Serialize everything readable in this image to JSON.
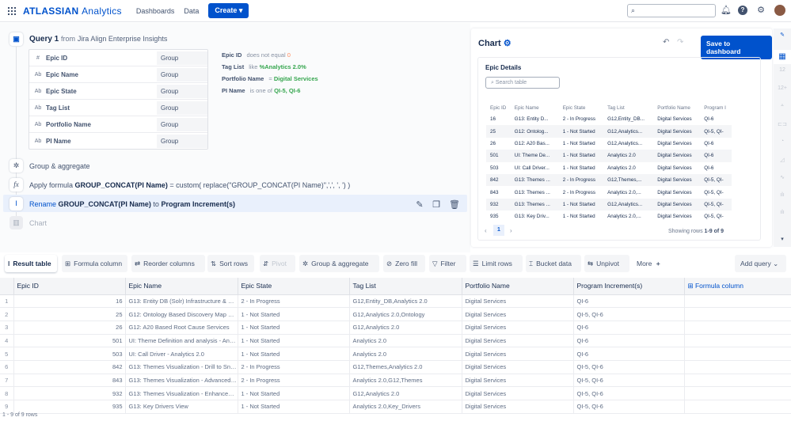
{
  "header": {
    "logo": "ATLASSIAN",
    "logo_product": "Analytics",
    "nav": [
      "Dashboards",
      "Data"
    ],
    "create": "Create",
    "search_placeholder": ""
  },
  "query": {
    "title": "Query 1",
    "from": "from",
    "source": "Jira Align Enterprise Insights",
    "fields": [
      {
        "type": "#",
        "name": "Epic ID",
        "agg": "Group"
      },
      {
        "type": "Ab",
        "name": "Epic Name",
        "agg": "Group"
      },
      {
        "type": "Ab",
        "name": "Epic State",
        "agg": "Group"
      },
      {
        "type": "Ab",
        "name": "Tag List",
        "agg": "Group"
      },
      {
        "type": "Ab",
        "name": "Portfolio Name",
        "agg": "Group"
      },
      {
        "type": "Ab",
        "name": "PI Name",
        "agg": "Group"
      }
    ],
    "filters": [
      {
        "field": "Epic ID",
        "op": "does not equal",
        "value": "0"
      },
      {
        "field": "Tag List",
        "op": "like",
        "value": "%Analytics 2.0%"
      },
      {
        "field": "Portfolio Name",
        "op": "=",
        "value": "Digital Services"
      },
      {
        "field": "PI Name",
        "op": "is one of",
        "value": "QI-5,  QI-6"
      }
    ],
    "steps": {
      "group": "Group & aggregate",
      "formula_pre": "Apply formula",
      "formula_name": "GROUP_CONCAT(PI Name)",
      "formula_expr": "= custom( replace(\"GROUP_CONCAT(PI Name)\",',', ', ') )",
      "rename": "Rename",
      "rename_from": "GROUP_CONCAT(PI Name)",
      "rename_to_word": "to",
      "rename_to": "Program Increment(s)",
      "chart": "Chart"
    }
  },
  "chart": {
    "title": "Chart",
    "save": "Save to dashboard",
    "card_title": "Epic Details",
    "search_placeholder": "Search table",
    "columns": [
      "Epic ID",
      "Epic Name",
      "Epic State",
      "Tag List",
      "Portfolio Name",
      "Program I"
    ],
    "rows": [
      [
        "16",
        "G13: Entity D...",
        "2 - In Progress",
        "G12,Entity_DB...",
        "Digital Services",
        "QI-6"
      ],
      [
        "25",
        "G12: Ontolog...",
        "1 - Not Started",
        "G12,Analytics...",
        "Digital Services",
        "QI-5, QI-"
      ],
      [
        "26",
        "G12: A20 Bas...",
        "1 - Not Started",
        "G12,Analytics...",
        "Digital Services",
        "QI-6"
      ],
      [
        "501",
        "UI: Theme De...",
        "1 - Not Started",
        "Analytics 2.0",
        "Digital Services",
        "QI-6"
      ],
      [
        "503",
        "UI: Call Driver...",
        "1 - Not Started",
        "Analytics 2.0",
        "Digital Services",
        "QI-6"
      ],
      [
        "842",
        "G13: Themes ...",
        "2 - In Progress",
        "G12,Themes,...",
        "Digital Services",
        "QI-5, QI-"
      ],
      [
        "843",
        "G13: Themes ...",
        "2 - In Progress",
        "Analytics 2.0,...",
        "Digital Services",
        "QI-5, QI-"
      ],
      [
        "932",
        "G13: Themes ...",
        "1 - Not Started",
        "G12,Analytics...",
        "Digital Services",
        "QI-5, QI-"
      ],
      [
        "935",
        "G13: Key Driv...",
        "1 - Not Started",
        "Analytics 2.0,...",
        "Digital Services",
        "QI-5, QI-"
      ]
    ],
    "page": "1",
    "showing_pre": "Showing rows",
    "showing": "1-9 of 9"
  },
  "sidebar_icons": [
    "paint-icon",
    "table-icon",
    "single-value-icon",
    "single-value-trend-icon",
    "funnel-icon",
    "bar-horizontal-icon",
    "pie-icon",
    "area-icon",
    "line-icon",
    "bar-icon",
    "combo-icon"
  ],
  "toolbar": [
    "Result table",
    "Formula column",
    "Reorder columns",
    "Sort rows",
    "Pivot",
    "Group & aggregate",
    "Zero fill",
    "Filter",
    "Limit rows",
    "Bucket data",
    "Unpivot",
    "More"
  ],
  "add_query": "Add query",
  "result": {
    "columns": [
      "Epic ID",
      "Epic Name",
      "Epic State",
      "Tag List",
      "Portfolio Name",
      "Program Increment(s)"
    ],
    "formula_col": "Formula column",
    "rows": [
      [
        "16",
        "G13: Entity DB (Solr) Infrastructure & Ma...",
        "2 - In Progress",
        "G12,Entity_DB,Analytics 2.0",
        "Digital Services",
        "QI-6"
      ],
      [
        "25",
        "G12: Ontology Based Discovery Map Ser...",
        "1 - Not Started",
        "G12,Analytics 2.0,Ontology",
        "Digital Services",
        "QI-5, QI-6"
      ],
      [
        "26",
        "G12: A20 Based Root Cause Services",
        "1 - Not Started",
        "G12,Analytics 2.0",
        "Digital Services",
        "QI-6"
      ],
      [
        "501",
        "UI: Theme Definition and analysis - Anal...",
        "1 - Not Started",
        "Analytics 2.0",
        "Digital Services",
        "QI-6"
      ],
      [
        "503",
        "UI: Call Driver - Analytics 2.0",
        "1 - Not Started",
        "Analytics 2.0",
        "Digital Services",
        "QI-6"
      ],
      [
        "842",
        "G13: Themes Visualization - Drill to Snip...",
        "2 - In Progress",
        "G12,Themes,Analytics 2.0",
        "Digital Services",
        "QI-5, QI-6"
      ],
      [
        "843",
        "G13: Themes Visualization - Advanced F...",
        "2 - In Progress",
        "Analytics 2.0,G12,Themes",
        "Digital Services",
        "QI-5, QI-6"
      ],
      [
        "932",
        "G13: Themes Visualization - Enhanceme...",
        "1 - Not Started",
        "G12,Analytics 2.0",
        "Digital Services",
        "QI-5, QI-6"
      ],
      [
        "935",
        "G13: Key Drivers View",
        "1 - Not Started",
        "Analytics 2.0,Key_Drivers",
        "Digital Services",
        "QI-5, QI-6"
      ]
    ],
    "footer": "1 - 9 of 9 rows"
  },
  "colors": {
    "accent": "#0052cc",
    "green": "#36a64f"
  }
}
